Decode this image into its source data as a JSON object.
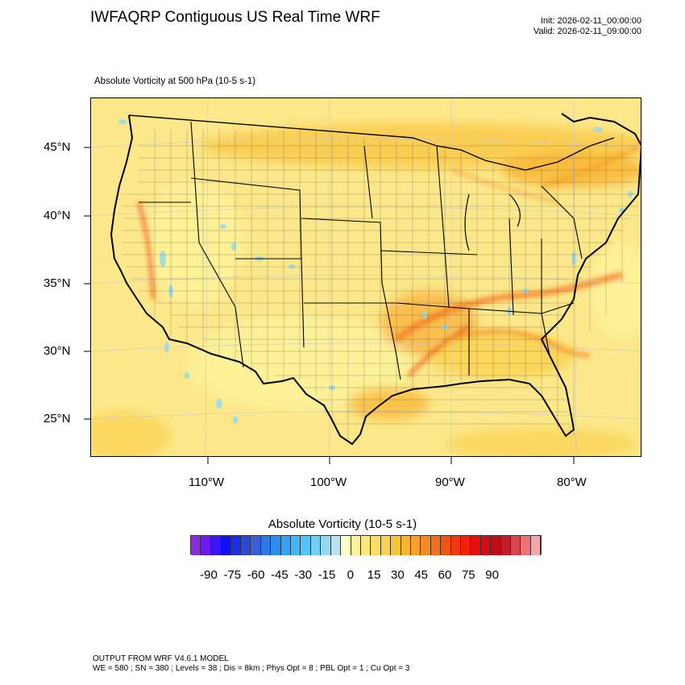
{
  "title": "IWFAQRP Contiguous US Real Time WRF",
  "init_line": "Init: 2026-02-11_00:00:00",
  "valid_line": "Valid: 2026-02-11_09:00:00",
  "subtitle": "Absolute Vorticity at 500 hPa   (10-5 s-1)",
  "lat_labels": [
    "45°N",
    "40°N",
    "35°N",
    "30°N",
    "25°N"
  ],
  "lon_labels": [
    "110°W",
    "100°W",
    "90°W",
    "80°W"
  ],
  "colorbar": {
    "title": "Absolute Vorticity  (10-5 s-1)",
    "tick_labels": [
      "-90",
      "-75",
      "-60",
      "-45",
      "-30",
      "-15",
      "0",
      "15",
      "30",
      "45",
      "60",
      "75",
      "90"
    ],
    "colors": [
      "#8a2be2",
      "#6a1bf0",
      "#3a16f5",
      "#1010ff",
      "#1e2ee6",
      "#2d49d8",
      "#3a5fd6",
      "#2f78e0",
      "#2d8cf0",
      "#30a2f7",
      "#40b6fb",
      "#56c4f9",
      "#74cff2",
      "#94d9ef",
      "#b6e4ee",
      "#fdfdc9",
      "#fdf39a",
      "#fde880",
      "#fcdd66",
      "#fbd24f",
      "#fac33c",
      "#f9b32f",
      "#f8a12a",
      "#f78a22",
      "#f66f18",
      "#f55312",
      "#f4380d",
      "#f31f08",
      "#e70e0e",
      "#d40a14",
      "#c20b17",
      "#c21d2a",
      "#d9484e",
      "#ea7276",
      "#f7a4a6"
    ]
  },
  "footer": {
    "line1": "OUTPUT FROM WRF V4.6.1 MODEL",
    "line2": "WE = 580 ; SN = 380 ; Levels = 38 ; Dis = 8km ; Phys Opt = 8 ; PBL Opt = 1 ; Cu Opt = 3"
  }
}
